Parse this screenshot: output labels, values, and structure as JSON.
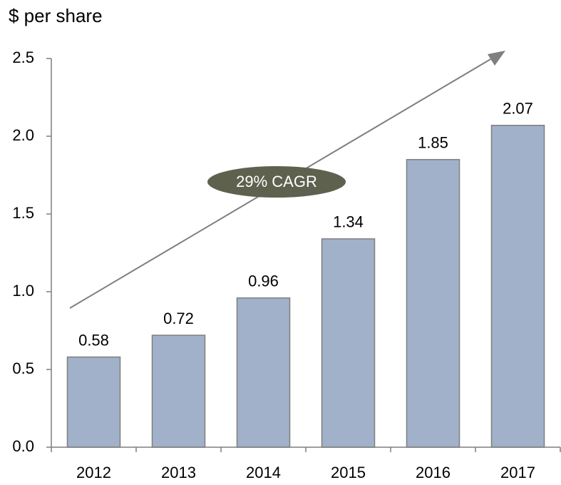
{
  "chart_data": {
    "type": "bar",
    "title": "$ per share",
    "categories": [
      "2012",
      "2013",
      "2014",
      "2015",
      "2016",
      "2017"
    ],
    "values": [
      0.58,
      0.72,
      0.96,
      1.34,
      1.85,
      2.07
    ],
    "color": "#a1b1c9",
    "ylim": [
      0,
      2.5
    ],
    "yticks": [
      {
        "value": 0,
        "label": "0.0"
      },
      0.5,
      {
        "value": 1,
        "label": "1.0"
      },
      1.5,
      {
        "value": 2,
        "label": "2.0"
      },
      2.5
    ],
    "annotation": "29% CAGR"
  }
}
